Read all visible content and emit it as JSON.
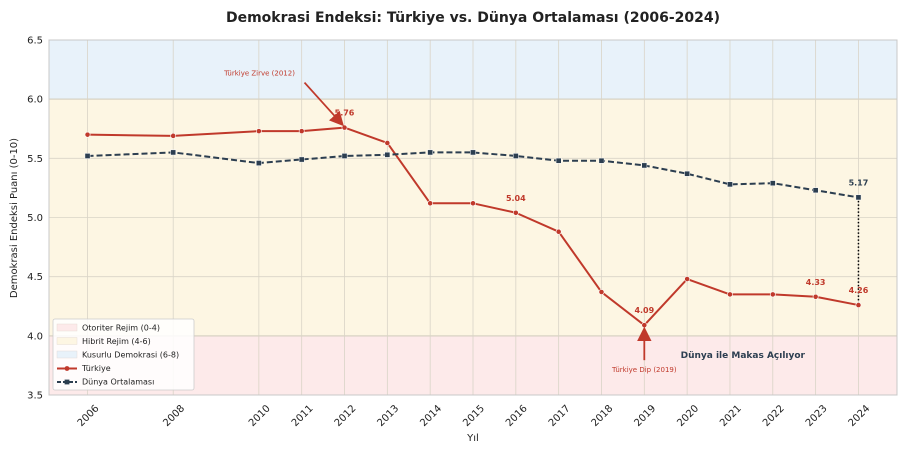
{
  "chart_data": {
    "type": "line",
    "title": "Demokrasi Endeksi: Türkiye vs. Dünya Ortalaması (2006-2024)",
    "xlabel": "Yıl",
    "ylabel": "Demokrasi Endeksi Puanı (0-10)",
    "ylim": [
      3.5,
      6.5
    ],
    "yticks": [
      3.5,
      4.0,
      4.5,
      5.0,
      5.5,
      6.0,
      6.5
    ],
    "x": [
      2006,
      2008,
      2010,
      2011,
      2012,
      2013,
      2014,
      2015,
      2016,
      2017,
      2018,
      2019,
      2020,
      2021,
      2022,
      2023,
      2024
    ],
    "grid": true,
    "legend_position": "lower-left",
    "regions": [
      {
        "name": "Otoriter Rejim (0-4)",
        "from": 3.5,
        "to": 4.0,
        "color": "#fdeaea"
      },
      {
        "name": "Hibrit Rejim (4-6)",
        "from": 4.0,
        "to": 6.0,
        "color": "#fdf6e3"
      },
      {
        "name": "Kusurlu Demokrasi (6-8)",
        "from": 6.0,
        "to": 6.5,
        "color": "#e8f2fa"
      }
    ],
    "series": [
      {
        "name": "Türkiye",
        "color": "#c0392b",
        "style": "solid",
        "marker": "circle",
        "values": [
          5.7,
          5.69,
          5.73,
          5.73,
          5.76,
          5.63,
          5.12,
          5.12,
          5.04,
          4.88,
          4.37,
          4.09,
          4.48,
          4.35,
          4.35,
          4.33,
          4.26
        ]
      },
      {
        "name": "Dünya Ortalaması",
        "color": "#2c3e50",
        "style": "dashed",
        "marker": "square",
        "values": [
          5.52,
          5.55,
          5.46,
          5.49,
          5.52,
          5.53,
          5.55,
          5.55,
          5.52,
          5.48,
          5.48,
          5.44,
          5.37,
          5.28,
          5.29,
          5.23,
          5.17
        ]
      }
    ],
    "data_labels": [
      {
        "series": 0,
        "x": 2012,
        "text": "5.76"
      },
      {
        "series": 0,
        "x": 2016,
        "text": "5.04"
      },
      {
        "series": 0,
        "x": 2019,
        "text": "4.09"
      },
      {
        "series": 0,
        "x": 2023,
        "text": "4.33"
      },
      {
        "series": 0,
        "x": 2024,
        "text": "4.26"
      },
      {
        "series": 1,
        "x": 2024,
        "text": "5.17"
      }
    ],
    "annotations": [
      {
        "text": "Türkiye Zirve (2012)",
        "target_x": 2012,
        "target_y": 5.76
      },
      {
        "text": "Türkiye Dip (2019)",
        "target_x": 2019,
        "target_y": 4.09
      },
      {
        "text": "Dünya ile Makas Açılıyor"
      }
    ]
  }
}
